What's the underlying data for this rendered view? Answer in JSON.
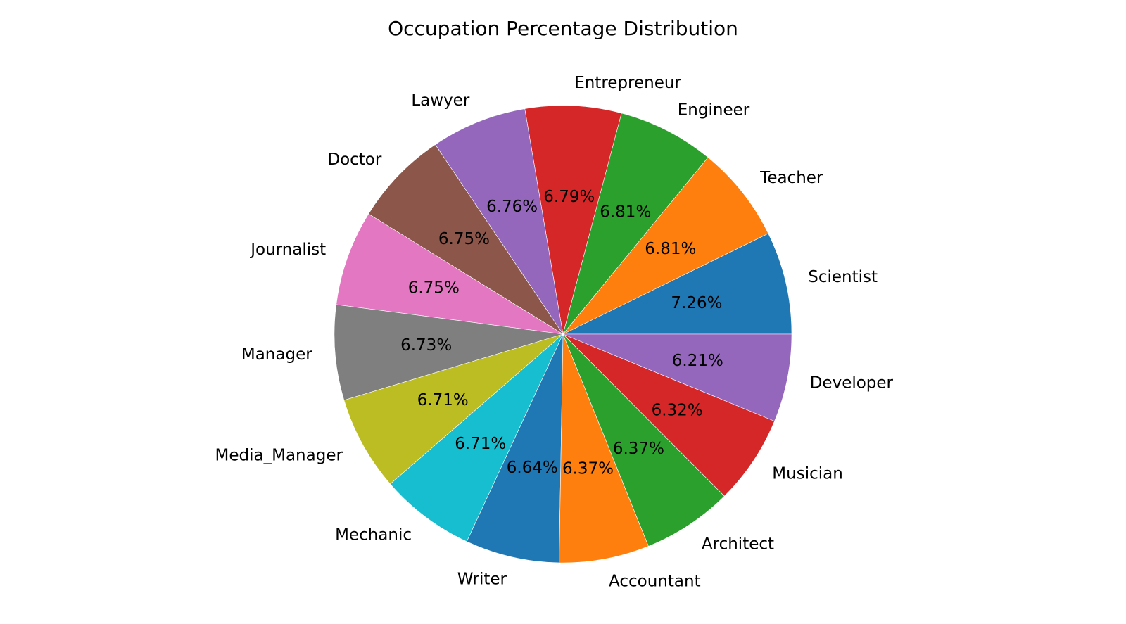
{
  "chart_data": {
    "type": "pie",
    "title": "Occupation Percentage Distribution",
    "start_angle": "0° (3 o'clock), counter-clockwise",
    "slices": [
      {
        "label": "Scientist",
        "value": 7.26,
        "display": "7.26%",
        "color": "#1f77b4"
      },
      {
        "label": "Teacher",
        "value": 6.81,
        "display": "6.81%",
        "color": "#ff7f0e"
      },
      {
        "label": "Engineer",
        "value": 6.81,
        "display": "6.81%",
        "color": "#2ca02c"
      },
      {
        "label": "Entrepreneur",
        "value": 6.79,
        "display": "6.79%",
        "color": "#d62728"
      },
      {
        "label": "Lawyer",
        "value": 6.76,
        "display": "6.76%",
        "color": "#9467bd"
      },
      {
        "label": "Doctor",
        "value": 6.75,
        "display": "6.75%",
        "color": "#8c564b"
      },
      {
        "label": "Journalist",
        "value": 6.75,
        "display": "6.75%",
        "color": "#e377c2"
      },
      {
        "label": "Manager",
        "value": 6.73,
        "display": "6.73%",
        "color": "#7f7f7f"
      },
      {
        "label": "Media_Manager",
        "value": 6.71,
        "display": "6.71%",
        "color": "#bcbd22"
      },
      {
        "label": "Mechanic",
        "value": 6.71,
        "display": "6.71%",
        "color": "#17becf"
      },
      {
        "label": "Writer",
        "value": 6.64,
        "display": "6.64%",
        "color": "#1f77b4"
      },
      {
        "label": "Accountant",
        "value": 6.37,
        "display": "6.37%",
        "color": "#ff7f0e"
      },
      {
        "label": "Architect",
        "value": 6.37,
        "display": "6.37%",
        "color": "#2ca02c"
      },
      {
        "label": "Musician",
        "value": 6.32,
        "display": "6.32%",
        "color": "#d62728"
      },
      {
        "label": "Developer",
        "value": 6.21,
        "display": "6.21%",
        "color": "#9467bd"
      }
    ]
  }
}
